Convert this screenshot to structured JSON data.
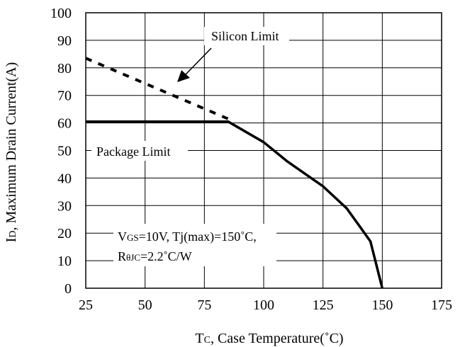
{
  "chart_data": {
    "type": "line",
    "xlabel": "Tc, Case Temperature(˚C)",
    "ylabel": "ID, Maximum Drain Current(A)",
    "xlim": [
      25,
      175
    ],
    "ylim": [
      0,
      100
    ],
    "xticks": [
      25,
      50,
      75,
      100,
      125,
      150,
      175
    ],
    "yticks": [
      0,
      10,
      20,
      30,
      40,
      50,
      60,
      70,
      80,
      90,
      100
    ],
    "grid": true,
    "series": [
      {
        "name": "Package Limit",
        "style": "solid",
        "color": "#000000",
        "x": [
          25,
          85,
          100,
          110,
          125,
          135,
          140,
          145,
          150
        ],
        "y": [
          60.5,
          60.5,
          53,
          46,
          37,
          29,
          23,
          17,
          0
        ]
      },
      {
        "name": "Silicon Limit",
        "style": "dashed",
        "color": "#000000",
        "x": [
          25,
          85
        ],
        "y": [
          83.5,
          61.5
        ]
      }
    ],
    "annotations": {
      "silicon_limit": "Silicon Limit",
      "package_limit": "Package Limit",
      "conditions_line1": "VGS=10V, Tj(max)=150˚C,",
      "conditions_line2": "RθJC=2.2˚C/W"
    }
  }
}
